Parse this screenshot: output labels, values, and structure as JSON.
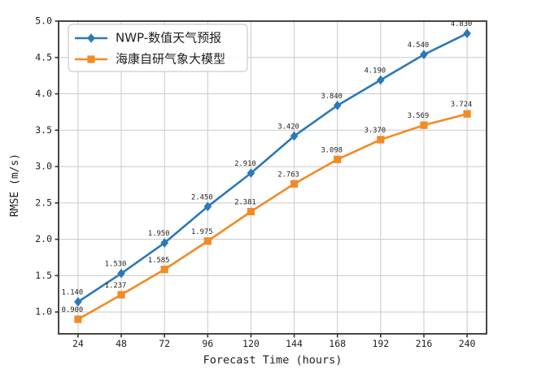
{
  "figure": {
    "background": "#ffffff"
  },
  "chart_data": {
    "type": "line",
    "title": "",
    "xlabel": "Forecast Time (hours)",
    "ylabel": "RMSE (m/s)",
    "x": [
      24,
      48,
      72,
      96,
      120,
      144,
      168,
      192,
      216,
      240
    ],
    "xlim": [
      13.2,
      250.8
    ],
    "ylim": [
      0.7,
      5.0
    ],
    "yticks": [
      1.0,
      1.5,
      2.0,
      2.5,
      3.0,
      3.5,
      4.0,
      4.5,
      5.0
    ],
    "grid": true,
    "legend_position": "upper-left",
    "series": [
      {
        "name": "NWP-数值天气预报",
        "color": "#2b79b9",
        "marker": "diamond",
        "values": [
          1.14,
          1.53,
          1.95,
          2.45,
          2.91,
          3.42,
          3.84,
          4.19,
          4.54,
          4.83
        ],
        "labels": [
          "1.140",
          "1.530",
          "1.950",
          "2.450",
          "2.910",
          "3.420",
          "3.840",
          "4.190",
          "4.540",
          "4.830"
        ]
      },
      {
        "name": "海康自研气象大模型",
        "color": "#f28a25",
        "marker": "square",
        "values": [
          0.9,
          1.237,
          1.585,
          1.975,
          2.381,
          2.763,
          3.098,
          3.37,
          3.569,
          3.724
        ],
        "labels": [
          "0.900",
          "1.237",
          "1.585",
          "1.975",
          "2.381",
          "2.763",
          "3.098",
          "3.370",
          "3.569",
          "3.724"
        ]
      }
    ],
    "colors": {
      "grid": "#c9c9c9",
      "frame": "#333333",
      "tick_text": "#1f1f1f",
      "label_text": "#1f1f1f"
    }
  }
}
